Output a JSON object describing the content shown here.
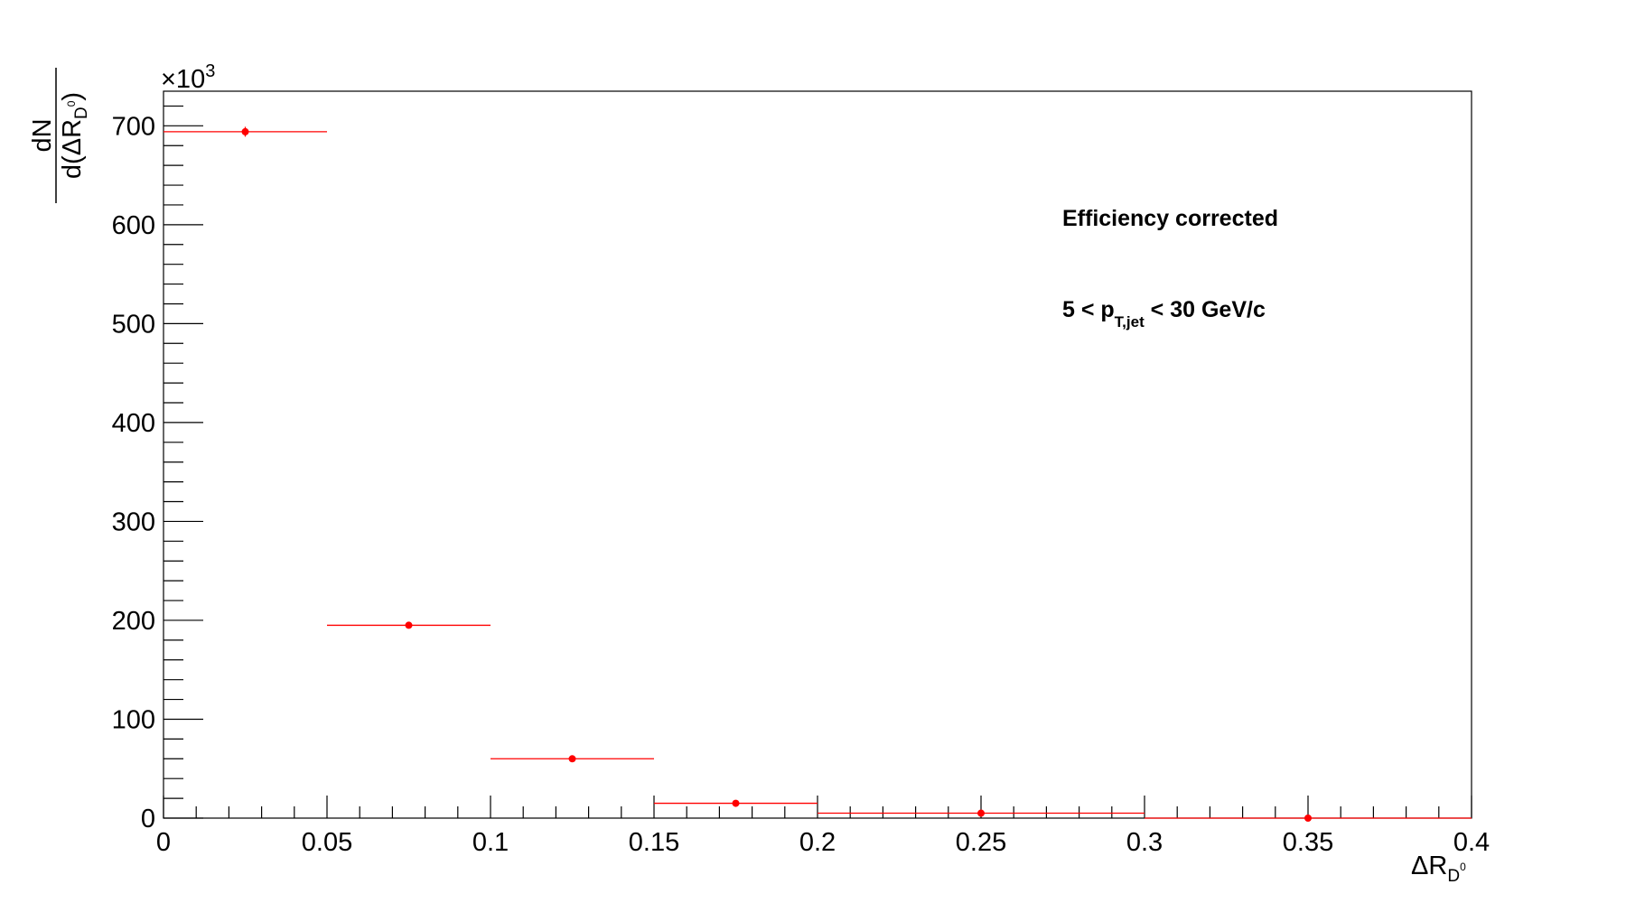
{
  "chart_data": {
    "type": "scatter",
    "title": "",
    "x_axis": {
      "range": [
        0,
        0.4
      ],
      "tick_labels": [
        "0",
        "0.05",
        "0.1",
        "0.15",
        "0.2",
        "0.25",
        "0.3",
        "0.35",
        "0.4"
      ],
      "tick_values": [
        0,
        0.05,
        0.1,
        0.15,
        0.2,
        0.25,
        0.3,
        0.35,
        0.4
      ],
      "minor_divisions": 5,
      "label_main": "ΔR",
      "label_sub": "D",
      "label_sup": "0"
    },
    "y_axis": {
      "range": [
        0,
        735
      ],
      "tick_labels": [
        "0",
        "100",
        "200",
        "300",
        "400",
        "500",
        "600",
        "700"
      ],
      "tick_values": [
        0,
        100,
        200,
        300,
        400,
        500,
        600,
        700
      ],
      "minor_divisions": 5,
      "exponent_prefix": "×10",
      "exponent_power": "3",
      "label_numerator": "dN",
      "label_den_open": "d(ΔR",
      "label_den_sub": "D",
      "label_den_sup": "0",
      "label_den_close": ")"
    },
    "series": [
      {
        "color": "#ff0000",
        "points": [
          {
            "x": 0.025,
            "xlow": 0.0,
            "xhigh": 0.05,
            "y": 694,
            "yerr": 5
          },
          {
            "x": 0.075,
            "xlow": 0.05,
            "xhigh": 0.1,
            "y": 195,
            "yerr": 3
          },
          {
            "x": 0.125,
            "xlow": 0.1,
            "xhigh": 0.15,
            "y": 60,
            "yerr": 2
          },
          {
            "x": 0.175,
            "xlow": 0.15,
            "xhigh": 0.2,
            "y": 15,
            "yerr": 1
          },
          {
            "x": 0.25,
            "xlow": 0.2,
            "xhigh": 0.3,
            "y": 5,
            "yerr": 1
          },
          {
            "x": 0.35,
            "xlow": 0.3,
            "xhigh": 0.4,
            "y": 0,
            "yerr": 0
          }
        ]
      }
    ],
    "annotations": {
      "line1": "Efficiency corrected",
      "line2_pre": "5 < p",
      "line2_sub": "T,jet",
      "line2_post": " < 30 GeV/c"
    },
    "grid": false,
    "legend": "none"
  }
}
